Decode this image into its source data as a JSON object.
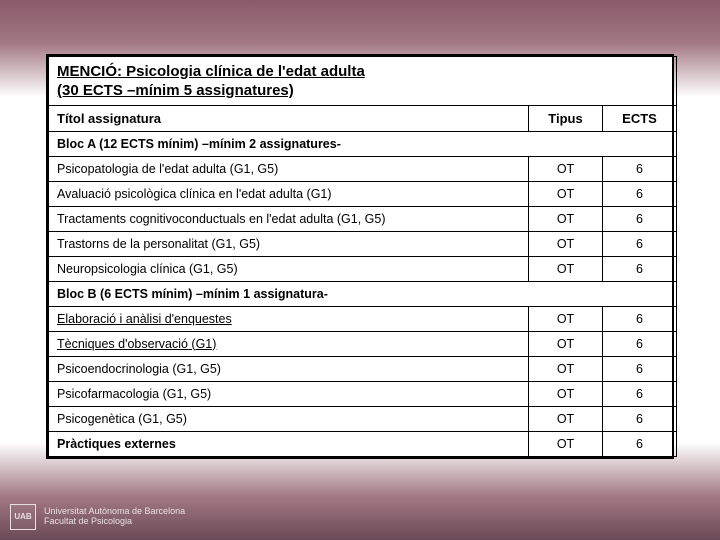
{
  "header": {
    "line1": "MENCIÓ: Psicologia clínica de l'edat adulta",
    "line2": "(30 ECTS –mínim 5 assignatures)"
  },
  "columns": {
    "title": "Títol assignatura",
    "tipus": "Tipus",
    "ects": "ECTS"
  },
  "blocA": {
    "label": "Bloc A (12 ECTS mínim) –mínim 2 assignatures-",
    "rows": [
      {
        "title": "Psicopatologia de l'edat adulta (G1, G5)",
        "tipus": "OT",
        "ects": "6"
      },
      {
        "title": "Avaluació psicològica clínica en l'edat adulta (G1)",
        "tipus": "OT",
        "ects": "6"
      },
      {
        "title": "Tractaments cognitivoconductuals en l'edat adulta (G1, G5)",
        "tipus": "OT",
        "ects": "6"
      },
      {
        "title": "Trastorns de la personalitat (G1, G5)",
        "tipus": "OT",
        "ects": "6"
      },
      {
        "title": "Neuropsicologia clínica (G1, G5)",
        "tipus": "OT",
        "ects": "6"
      }
    ]
  },
  "blocB": {
    "label": "Bloc B (6 ECTS mínim) –mínim 1 assignatura-",
    "rows": [
      {
        "title": "Elaboració i anàlisi d'enquestes",
        "tipus": "OT",
        "ects": "6",
        "underline": true
      },
      {
        "title": "Tècniques d'observació (G1)",
        "tipus": "OT",
        "ects": "6",
        "underline": true
      },
      {
        "title": "Psicoendocrinologia (G1, G5)",
        "tipus": "OT",
        "ects": "6"
      },
      {
        "title": "Psicofarmacologia (G1, G5)",
        "tipus": "OT",
        "ects": "6"
      },
      {
        "title": "Psicogenètica (G1, G5)",
        "tipus": "OT",
        "ects": "6"
      },
      {
        "title": "Pràctiques externes",
        "tipus": "OT",
        "ects": "6",
        "bold": true
      }
    ]
  },
  "footer": {
    "logo": "UAB",
    "line1": "Universitat Autònoma de Barcelona",
    "line2": "Facultat de Psicologia"
  },
  "style": {
    "table_border": "#000000",
    "bg_top": "#8a5a6a",
    "bg_bottom": "#6a4a56",
    "text": "#000000"
  }
}
